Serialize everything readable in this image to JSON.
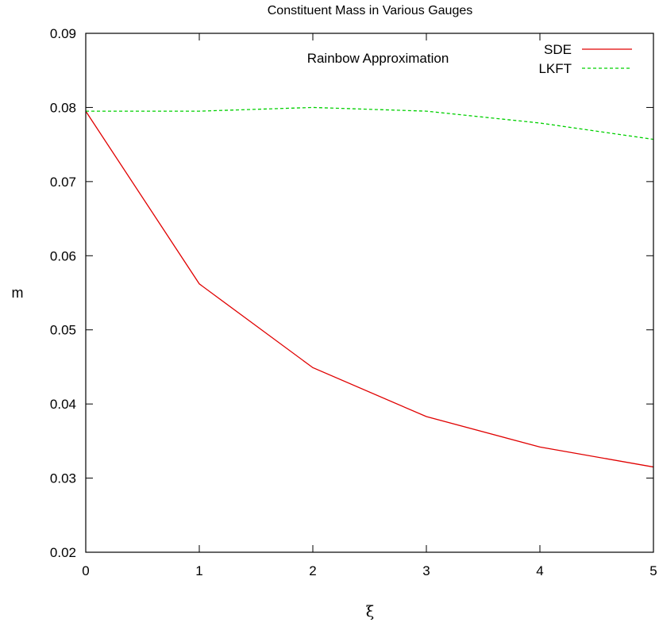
{
  "chart_data": {
    "type": "line",
    "title": "Constituent Mass in Various Gauges",
    "annotation": "Rainbow Approximation",
    "xlabel": "ξ",
    "ylabel": "m",
    "xlim": [
      0,
      5
    ],
    "ylim": [
      0.02,
      0.09
    ],
    "x_ticks": [
      "0",
      "1",
      "2",
      "3",
      "4",
      "5"
    ],
    "y_ticks": [
      "0.02",
      "0.03",
      "0.04",
      "0.05",
      "0.06",
      "0.07",
      "0.08",
      "0.09"
    ],
    "x": [
      0,
      1,
      2,
      3,
      4,
      5
    ],
    "series": [
      {
        "name": "SDE",
        "color": "#e00000",
        "style": "solid",
        "values": [
          0.0795,
          0.0562,
          0.0449,
          0.0383,
          0.0342,
          0.0315
        ]
      },
      {
        "name": "LKFT",
        "color": "#00d000",
        "style": "dashed",
        "values": [
          0.0795,
          0.0795,
          0.08,
          0.0795,
          0.0779,
          0.0757
        ]
      }
    ],
    "legend_position": "top-right",
    "grid": false
  }
}
